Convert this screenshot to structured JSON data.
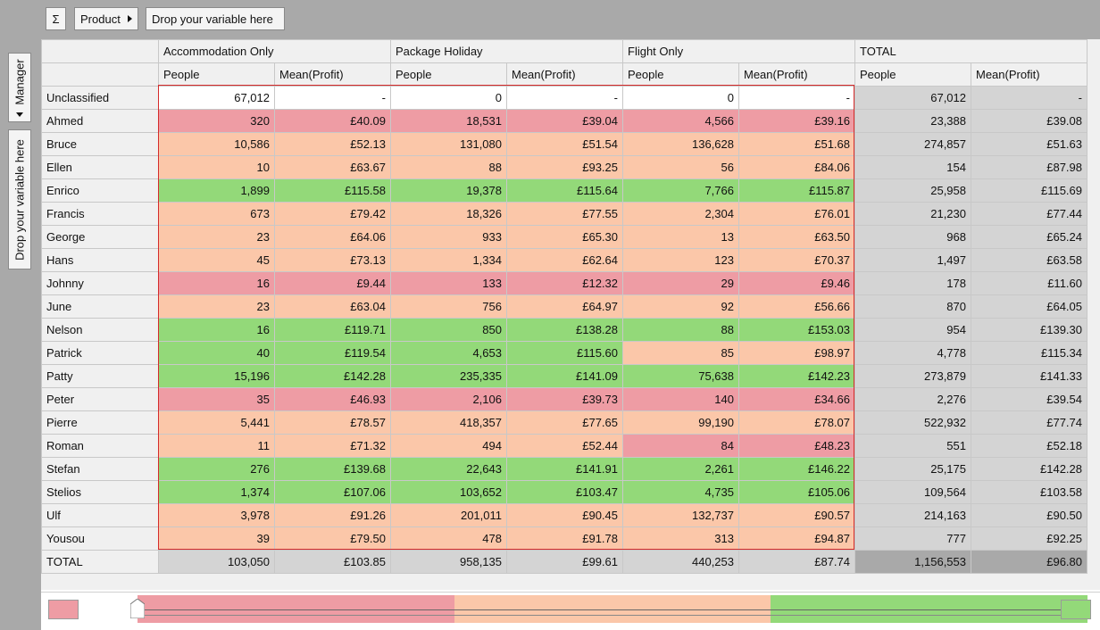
{
  "toolbar": {
    "sigma_label": "Σ",
    "product_label": "Product",
    "drop_label": "Drop your variable here"
  },
  "sidebar": {
    "manager_label": "Manager",
    "drop_label": "Drop your variable here"
  },
  "table": {
    "groups": [
      "Accommodation Only",
      "Package Holiday",
      "Flight Only",
      "TOTAL"
    ],
    "subheaders": [
      "People",
      "Mean(Profit)",
      "People",
      "Mean(Profit)",
      "People",
      "Mean(Profit)",
      "People",
      "Mean(Profit)"
    ],
    "rows": [
      {
        "name": "Unclassified",
        "cells": [
          "67,012",
          "-",
          "0",
          "-",
          "0",
          "-",
          "67,012",
          "-"
        ],
        "colors": [
          "wht",
          "wht",
          "wht",
          "wht",
          "wht",
          "wht",
          "gry",
          "gry"
        ]
      },
      {
        "name": "Ahmed",
        "cells": [
          "320",
          "£40.09",
          "18,531",
          "£39.04",
          "4,566",
          "£39.16",
          "23,388",
          "£39.08"
        ],
        "colors": [
          "red",
          "red",
          "red",
          "red",
          "red",
          "red",
          "gry",
          "gry"
        ]
      },
      {
        "name": "Bruce",
        "cells": [
          "10,586",
          "£52.13",
          "131,080",
          "£51.54",
          "136,628",
          "£51.68",
          "274,857",
          "£51.63"
        ],
        "colors": [
          "pch",
          "pch",
          "pch",
          "pch",
          "pch",
          "pch",
          "gry",
          "gry"
        ]
      },
      {
        "name": "Ellen",
        "cells": [
          "10",
          "£63.67",
          "88",
          "£93.25",
          "56",
          "£84.06",
          "154",
          "£87.98"
        ],
        "colors": [
          "pch",
          "pch",
          "pch",
          "pch",
          "pch",
          "pch",
          "gry",
          "gry"
        ]
      },
      {
        "name": "Enrico",
        "cells": [
          "1,899",
          "£115.58",
          "19,378",
          "£115.64",
          "7,766",
          "£115.87",
          "25,958",
          "£115.69"
        ],
        "colors": [
          "grn",
          "grn",
          "grn",
          "grn",
          "grn",
          "grn",
          "gry",
          "gry"
        ]
      },
      {
        "name": "Francis",
        "cells": [
          "673",
          "£79.42",
          "18,326",
          "£77.55",
          "2,304",
          "£76.01",
          "21,230",
          "£77.44"
        ],
        "colors": [
          "pch",
          "pch",
          "pch",
          "pch",
          "pch",
          "pch",
          "gry",
          "gry"
        ]
      },
      {
        "name": "George",
        "cells": [
          "23",
          "£64.06",
          "933",
          "£65.30",
          "13",
          "£63.50",
          "968",
          "£65.24"
        ],
        "colors": [
          "pch",
          "pch",
          "pch",
          "pch",
          "pch",
          "pch",
          "gry",
          "gry"
        ]
      },
      {
        "name": "Hans",
        "cells": [
          "45",
          "£73.13",
          "1,334",
          "£62.64",
          "123",
          "£70.37",
          "1,497",
          "£63.58"
        ],
        "colors": [
          "pch",
          "pch",
          "pch",
          "pch",
          "pch",
          "pch",
          "gry",
          "gry"
        ]
      },
      {
        "name": "Johnny",
        "cells": [
          "16",
          "£9.44",
          "133",
          "£12.32",
          "29",
          "£9.46",
          "178",
          "£11.60"
        ],
        "colors": [
          "red",
          "red",
          "red",
          "red",
          "red",
          "red",
          "gry",
          "gry"
        ]
      },
      {
        "name": "June",
        "cells": [
          "23",
          "£63.04",
          "756",
          "£64.97",
          "92",
          "£56.66",
          "870",
          "£64.05"
        ],
        "colors": [
          "pch",
          "pch",
          "pch",
          "pch",
          "pch",
          "pch",
          "gry",
          "gry"
        ]
      },
      {
        "name": "Nelson",
        "cells": [
          "16",
          "£119.71",
          "850",
          "£138.28",
          "88",
          "£153.03",
          "954",
          "£139.30"
        ],
        "colors": [
          "grn",
          "grn",
          "grn",
          "grn",
          "grn",
          "grn",
          "gry",
          "gry"
        ]
      },
      {
        "name": "Patrick",
        "cells": [
          "40",
          "£119.54",
          "4,653",
          "£115.60",
          "85",
          "£98.97",
          "4,778",
          "£115.34"
        ],
        "colors": [
          "grn",
          "grn",
          "grn",
          "grn",
          "pch",
          "pch",
          "gry",
          "gry"
        ]
      },
      {
        "name": "Patty",
        "cells": [
          "15,196",
          "£142.28",
          "235,335",
          "£141.09",
          "75,638",
          "£142.23",
          "273,879",
          "£141.33"
        ],
        "colors": [
          "grn",
          "grn",
          "grn",
          "grn",
          "grn",
          "grn",
          "gry",
          "gry"
        ]
      },
      {
        "name": "Peter",
        "cells": [
          "35",
          "£46.93",
          "2,106",
          "£39.73",
          "140",
          "£34.66",
          "2,276",
          "£39.54"
        ],
        "colors": [
          "red",
          "red",
          "red",
          "red",
          "red",
          "red",
          "gry",
          "gry"
        ]
      },
      {
        "name": "Pierre",
        "cells": [
          "5,441",
          "£78.57",
          "418,357",
          "£77.65",
          "99,190",
          "£78.07",
          "522,932",
          "£77.74"
        ],
        "colors": [
          "pch",
          "pch",
          "pch",
          "pch",
          "pch",
          "pch",
          "gry",
          "gry"
        ]
      },
      {
        "name": "Roman",
        "cells": [
          "11",
          "£71.32",
          "494",
          "£52.44",
          "84",
          "£48.23",
          "551",
          "£52.18"
        ],
        "colors": [
          "pch",
          "pch",
          "pch",
          "pch",
          "red",
          "red",
          "gry",
          "gry"
        ]
      },
      {
        "name": "Stefan",
        "cells": [
          "276",
          "£139.68",
          "22,643",
          "£141.91",
          "2,261",
          "£146.22",
          "25,175",
          "£142.28"
        ],
        "colors": [
          "grn",
          "grn",
          "grn",
          "grn",
          "grn",
          "grn",
          "gry",
          "gry"
        ]
      },
      {
        "name": "Stelios",
        "cells": [
          "1,374",
          "£107.06",
          "103,652",
          "£103.47",
          "4,735",
          "£105.06",
          "109,564",
          "£103.58"
        ],
        "colors": [
          "grn",
          "grn",
          "grn",
          "grn",
          "grn",
          "grn",
          "gry",
          "gry"
        ]
      },
      {
        "name": "Ulf",
        "cells": [
          "3,978",
          "£91.26",
          "201,011",
          "£90.45",
          "132,737",
          "£90.57",
          "214,163",
          "£90.50"
        ],
        "colors": [
          "pch",
          "pch",
          "pch",
          "pch",
          "pch",
          "pch",
          "gry",
          "gry"
        ]
      },
      {
        "name": "Yousou",
        "cells": [
          "39",
          "£79.50",
          "478",
          "£91.78",
          "313",
          "£94.87",
          "777",
          "£92.25"
        ],
        "colors": [
          "pch",
          "pch",
          "pch",
          "pch",
          "pch",
          "pch",
          "gry",
          "gry"
        ]
      }
    ],
    "total_row": {
      "name": "TOTAL",
      "cells": [
        "103,050",
        "£103.85",
        "958,135",
        "£99.61",
        "440,253",
        "£87.74",
        "1,156,553",
        "£96.80"
      ],
      "colors": [
        "gry",
        "gry",
        "gry",
        "gry",
        "gry",
        "gry",
        "dgry",
        "dgry"
      ]
    }
  },
  "legend": {
    "colors": {
      "low": "#ee9ca4",
      "mid": "#fbc7a9",
      "high": "#93d979"
    }
  }
}
